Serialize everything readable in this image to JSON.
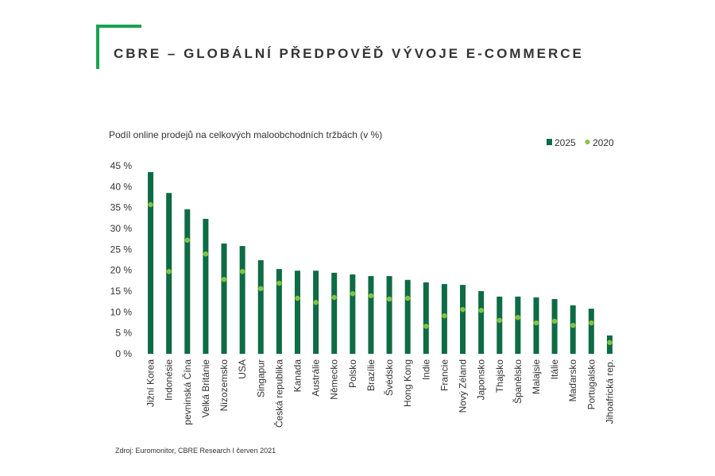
{
  "chart_data": {
    "type": "bar",
    "title": "CBRE – GLOBÁLNÍ PŘEDPOVĚĎ VÝVOJE E-COMMERCE",
    "subtitle": "Podíl online prodejů na celkových maloobchodních tržbách (v %)",
    "source": "Zdroj: Euromonitor, CBRE Research I červen 2021",
    "categories": [
      "Jižní Korea",
      "Indonésie",
      "pevninská Čína",
      "Velká Británie",
      "Nizozemsko",
      "USA",
      "Singapur",
      "Česká republika",
      "Kanada",
      "Austrálie",
      "Německo",
      "Polsko",
      "Brazílie",
      "Švédsko",
      "Hong Kong",
      "Indie",
      "Francie",
      "Nový Zéland",
      "Japonsko",
      "Thajsko",
      "Španělsko",
      "Malajsie",
      "Itálie",
      "Maďarsko",
      "Portugalsko",
      "Jihoafrická rep."
    ],
    "series": [
      {
        "name": "2025",
        "type": "bar",
        "color": "#0d6b45",
        "values": [
          43.5,
          38.5,
          34.6,
          32.3,
          26.4,
          25.8,
          22.4,
          20.3,
          19.9,
          19.9,
          19.4,
          19.0,
          18.6,
          18.6,
          17.7,
          17.1,
          16.7,
          16.5,
          15.0,
          13.7,
          13.7,
          13.5,
          13.1,
          11.6,
          10.8,
          4.4
        ]
      },
      {
        "name": "2020",
        "type": "scatter",
        "color": "#84c341",
        "values": [
          35.7,
          19.7,
          27.2,
          23.9,
          17.8,
          19.7,
          15.6,
          16.9,
          13.3,
          12.3,
          13.5,
          14.4,
          13.9,
          13.1,
          13.3,
          6.6,
          9.1,
          10.6,
          10.4,
          8.0,
          8.7,
          7.4,
          7.8,
          6.8,
          7.4,
          2.7
        ]
      }
    ],
    "ylim": [
      0,
      45
    ],
    "yticks": [
      {
        "value": 0,
        "label": "0 %"
      },
      {
        "value": 5,
        "label": "5 %"
      },
      {
        "value": 10,
        "label": "10 %"
      },
      {
        "value": 15,
        "label": "15 %"
      },
      {
        "value": 20,
        "label": "20 %"
      },
      {
        "value": 25,
        "label": "25 %"
      },
      {
        "value": 30,
        "label": "30 %"
      },
      {
        "value": 35,
        "label": "35 %"
      },
      {
        "value": 40,
        "label": "40 %"
      },
      {
        "value": 45,
        "label": "45 %"
      }
    ],
    "grid": false,
    "legend": "top-right"
  }
}
